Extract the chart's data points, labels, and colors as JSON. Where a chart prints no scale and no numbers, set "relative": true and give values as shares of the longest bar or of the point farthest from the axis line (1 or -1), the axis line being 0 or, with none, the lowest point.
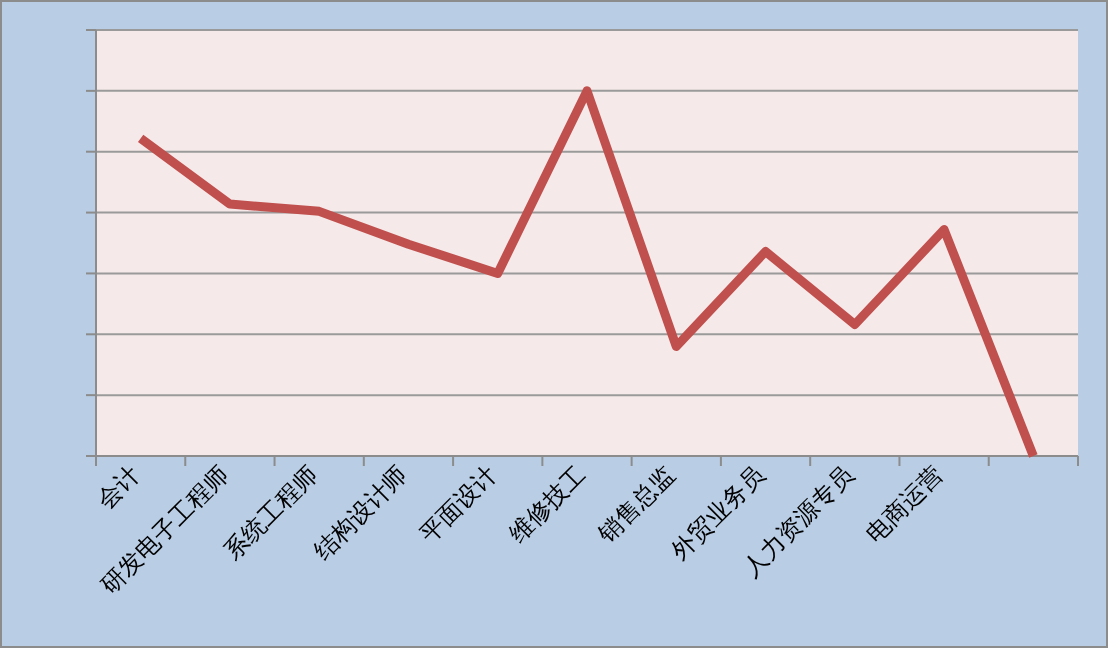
{
  "chart_data": {
    "type": "line",
    "relative": true,
    "grid": "y",
    "color": "#c0504d",
    "categories": [
      "会计",
      "研发电子工程师",
      "系统工程师",
      "结构设计师",
      "平面设计",
      "维修技工",
      "销售总监",
      "外贸业务员",
      "人力资源专员",
      "电商运营",
      null
    ],
    "values": [
      0.87,
      0.69,
      0.67,
      0.58,
      0.5,
      1,
      0.3,
      0.56,
      0.36,
      0.62,
      0
    ]
  }
}
